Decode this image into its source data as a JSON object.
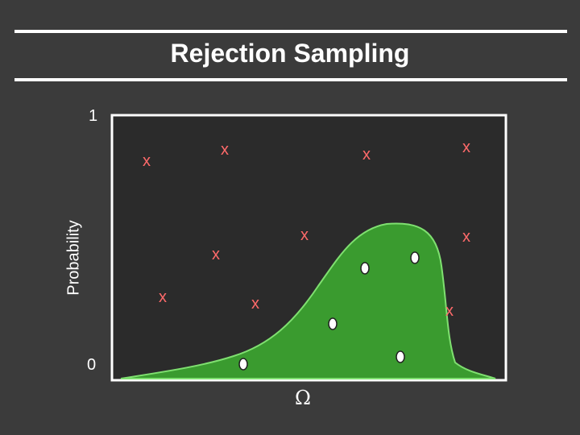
{
  "title": "Rejection Sampling",
  "y_axis": {
    "label": "Probability",
    "tick_top": "1",
    "tick_bottom": "0"
  },
  "x_axis": {
    "label": "Ω"
  },
  "colors": {
    "background": "#3b3b3b",
    "curve_fill": "#3a9b2f",
    "curve_stroke": "#7fe070",
    "rejected_mark": "#ff6a6a",
    "accepted_mark": "#ffffff"
  },
  "marker_labels": {
    "rejected": "x"
  }
}
